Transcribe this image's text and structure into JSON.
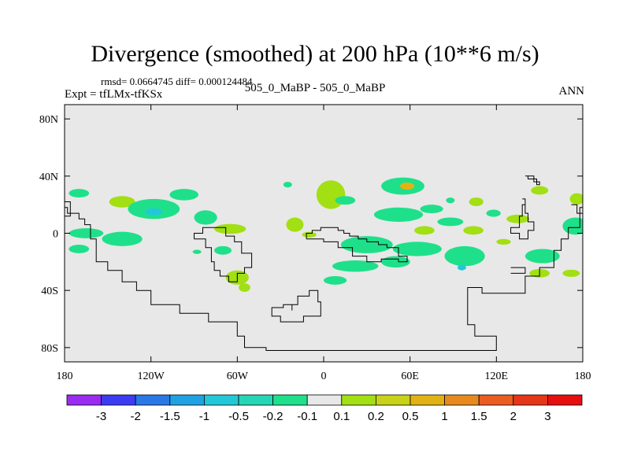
{
  "chart_data": {
    "type": "heatmap",
    "title": "Divergence (smoothed) at 200 hPa (10**6 m/s)",
    "stats": "rmsd= 0.0664745 diff= 0.000124484",
    "left_label": "Expt = tfLMx-tfKSx",
    "center_label": "505_0_MaBP - 505_0_MaBP",
    "right_label": "ANN",
    "x_ticks": [
      "180",
      "120W",
      "60W",
      "0",
      "60E",
      "120E",
      "180"
    ],
    "x_tick_values": [
      -180,
      -120,
      -60,
      0,
      60,
      120,
      180
    ],
    "y_ticks": [
      "80N",
      "40N",
      "0",
      "40S",
      "80S"
    ],
    "y_tick_values": [
      80,
      40,
      0,
      -40,
      -80
    ],
    "xlim": [
      -180,
      180
    ],
    "ylim": [
      -90,
      90
    ],
    "colorbar_labels": [
      "-3",
      "-2",
      "-1.5",
      "-1",
      "-0.5",
      "-0.2",
      "-0.1",
      "0.1",
      "0.2",
      "0.5",
      "1",
      "1.5",
      "2",
      "3"
    ],
    "colorbar_colors": [
      "#9a2bf0",
      "#3c3cf2",
      "#2a78e6",
      "#1fa2e2",
      "#23c8d8",
      "#25d6b6",
      "#1fe08a",
      "#e8e8e8",
      "#a2df13",
      "#c8d218",
      "#e2b214",
      "#e8891e",
      "#ea5c20",
      "#e63618",
      "#e60e0e"
    ],
    "background_color": "#e8e8e8",
    "blobs": [
      {
        "lon": -170,
        "lat": 28,
        "rx": 7,
        "ry": 3,
        "c": "#1fe08a"
      },
      {
        "lon": -165,
        "lat": 0,
        "rx": 12,
        "ry": 3.5,
        "c": "#1fe08a"
      },
      {
        "lon": -170,
        "lat": -11,
        "rx": 7,
        "ry": 3,
        "c": "#1fe08a"
      },
      {
        "lon": -140,
        "lat": 22,
        "rx": 9,
        "ry": 4,
        "c": "#a2df13"
      },
      {
        "lon": -118,
        "lat": 17,
        "rx": 18,
        "ry": 7,
        "c": "#1fe08a"
      },
      {
        "lon": -118,
        "lat": 15,
        "rx": 6,
        "ry": 2.5,
        "c": "#23c8d8"
      },
      {
        "lon": -140,
        "lat": -4,
        "rx": 14,
        "ry": 5,
        "c": "#1fe08a"
      },
      {
        "lon": -97,
        "lat": 27,
        "rx": 10,
        "ry": 4,
        "c": "#1fe08a"
      },
      {
        "lon": -82,
        "lat": 11,
        "rx": 8,
        "ry": 5,
        "c": "#1fe08a"
      },
      {
        "lon": -65,
        "lat": 3,
        "rx": 11,
        "ry": 3.5,
        "c": "#a2df13"
      },
      {
        "lon": -60,
        "lat": -31,
        "rx": 8,
        "ry": 5,
        "c": "#a2df13"
      },
      {
        "lon": -55,
        "lat": -38,
        "rx": 4,
        "ry": 3,
        "c": "#a2df13"
      },
      {
        "lon": -88,
        "lat": -13,
        "rx": 3,
        "ry": 1.5,
        "c": "#1fe08a"
      },
      {
        "lon": -20,
        "lat": 6,
        "rx": 6,
        "ry": 5,
        "c": "#a2df13"
      },
      {
        "lon": -10,
        "lat": -1,
        "rx": 5,
        "ry": 2,
        "c": "#a2df13"
      },
      {
        "lon": 5,
        "lat": 27,
        "rx": 10,
        "ry": 10,
        "c": "#a2df13"
      },
      {
        "lon": 15,
        "lat": 23,
        "rx": 7,
        "ry": 3,
        "c": "#1fe08a"
      },
      {
        "lon": -25,
        "lat": 34,
        "rx": 3,
        "ry": 2,
        "c": "#1fe08a"
      },
      {
        "lon": 30,
        "lat": -8,
        "rx": 18,
        "ry": 6,
        "c": "#1fe08a"
      },
      {
        "lon": 22,
        "lat": -23,
        "rx": 16,
        "ry": 4,
        "c": "#1fe08a"
      },
      {
        "lon": 8,
        "lat": -33,
        "rx": 8,
        "ry": 3,
        "c": "#1fe08a"
      },
      {
        "lon": 55,
        "lat": 33,
        "rx": 15,
        "ry": 6,
        "c": "#1fe08a"
      },
      {
        "lon": 58,
        "lat": 33,
        "rx": 5,
        "ry": 2.5,
        "c": "#e2b214"
      },
      {
        "lon": 52,
        "lat": 13,
        "rx": 17,
        "ry": 5,
        "c": "#1fe08a"
      },
      {
        "lon": 75,
        "lat": 17,
        "rx": 8,
        "ry": 3,
        "c": "#1fe08a"
      },
      {
        "lon": 70,
        "lat": 2,
        "rx": 7,
        "ry": 3,
        "c": "#a2df13"
      },
      {
        "lon": 65,
        "lat": -11,
        "rx": 17,
        "ry": 5,
        "c": "#1fe08a"
      },
      {
        "lon": 50,
        "lat": -20,
        "rx": 10,
        "ry": 4,
        "c": "#1fe08a"
      },
      {
        "lon": 98,
        "lat": -16,
        "rx": 14,
        "ry": 7,
        "c": "#1fe08a"
      },
      {
        "lon": 96,
        "lat": -24,
        "rx": 3,
        "ry": 2,
        "c": "#23c8d8"
      },
      {
        "lon": 88,
        "lat": 8,
        "rx": 9,
        "ry": 3,
        "c": "#1fe08a"
      },
      {
        "lon": 104,
        "lat": 2,
        "rx": 7,
        "ry": 3,
        "c": "#a2df13"
      },
      {
        "lon": 106,
        "lat": 22,
        "rx": 5,
        "ry": 3,
        "c": "#a2df13"
      },
      {
        "lon": 88,
        "lat": 23,
        "rx": 3,
        "ry": 2,
        "c": "#1fe08a"
      },
      {
        "lon": 118,
        "lat": 14,
        "rx": 5,
        "ry": 2.5,
        "c": "#1fe08a"
      },
      {
        "lon": 135,
        "lat": 10,
        "rx": 8,
        "ry": 3,
        "c": "#a2df13"
      },
      {
        "lon": 125,
        "lat": -6,
        "rx": 5,
        "ry": 2,
        "c": "#a2df13"
      },
      {
        "lon": 152,
        "lat": -16,
        "rx": 12,
        "ry": 5,
        "c": "#1fe08a"
      },
      {
        "lon": 150,
        "lat": -28,
        "rx": 7,
        "ry": 3,
        "c": "#a2df13"
      },
      {
        "lon": 175,
        "lat": 5,
        "rx": 9,
        "ry": 6,
        "c": "#1fe08a"
      },
      {
        "lon": 176,
        "lat": 24,
        "rx": 5,
        "ry": 4,
        "c": "#a2df13"
      },
      {
        "lon": 150,
        "lat": 30,
        "rx": 6,
        "ry": 3,
        "c": "#a2df13"
      },
      {
        "lon": 172,
        "lat": -28,
        "rx": 6,
        "ry": 2.5,
        "c": "#a2df13"
      },
      {
        "lon": -70,
        "lat": -12,
        "rx": 6,
        "ry": 3,
        "c": "#1fe08a"
      }
    ],
    "coast": [
      [
        [
          -180,
          18
        ],
        [
          -178,
          18
        ],
        [
          -178,
          14
        ],
        [
          -170,
          14
        ],
        [
          -170,
          10
        ],
        [
          -166,
          10
        ],
        [
          -166,
          6
        ],
        [
          -162,
          6
        ],
        [
          -162,
          -4
        ],
        [
          -158,
          -4
        ],
        [
          -158,
          -20
        ],
        [
          -150,
          -20
        ],
        [
          -150,
          -26
        ],
        [
          -140,
          -26
        ],
        [
          -140,
          -34
        ],
        [
          -130,
          -34
        ],
        [
          -130,
          -40
        ],
        [
          -120,
          -40
        ],
        [
          -120,
          -50
        ],
        [
          -100,
          -50
        ],
        [
          -100,
          -56
        ],
        [
          -80,
          -56
        ],
        [
          -80,
          -62
        ],
        [
          -60,
          -62
        ],
        [
          -60,
          -72
        ],
        [
          -55,
          -72
        ],
        [
          -55,
          -80
        ],
        [
          -40,
          -80
        ],
        [
          -40,
          -82
        ],
        [
          120,
          -82
        ],
        [
          120,
          -72
        ],
        [
          105,
          -72
        ],
        [
          105,
          -64
        ],
        [
          100,
          -64
        ],
        [
          100,
          -38
        ],
        [
          110,
          -38
        ],
        [
          110,
          -42
        ],
        [
          140,
          -42
        ],
        [
          140,
          -30
        ],
        [
          150,
          -30
        ],
        [
          150,
          -24
        ],
        [
          160,
          -24
        ],
        [
          160,
          -12
        ],
        [
          165,
          -12
        ],
        [
          165,
          -4
        ],
        [
          170,
          -4
        ],
        [
          170,
          4
        ],
        [
          178,
          4
        ],
        [
          178,
          18
        ],
        [
          180,
          18
        ]
      ],
      [
        [
          -180,
          22
        ],
        [
          -176,
          22
        ],
        [
          -176,
          12
        ],
        [
          -180,
          12
        ]
      ],
      [
        [
          -90,
          -4
        ],
        [
          -82,
          -4
        ],
        [
          -82,
          -10
        ],
        [
          -78,
          -10
        ],
        [
          -78,
          -20
        ],
        [
          -76,
          -20
        ],
        [
          -76,
          -26
        ],
        [
          -72,
          -26
        ],
        [
          -72,
          -30
        ],
        [
          -66,
          -30
        ],
        [
          -66,
          -34
        ],
        [
          -60,
          -34
        ],
        [
          -60,
          -28
        ],
        [
          -55,
          -28
        ],
        [
          -55,
          -24
        ],
        [
          -50,
          -24
        ],
        [
          -50,
          -14
        ],
        [
          -57,
          -14
        ],
        [
          -57,
          -6
        ],
        [
          -62,
          -6
        ],
        [
          -62,
          -2
        ],
        [
          -68,
          -2
        ],
        [
          -68,
          4
        ],
        [
          -84,
          4
        ],
        [
          -84,
          0
        ],
        [
          -90,
          0
        ],
        [
          -90,
          -4
        ]
      ],
      [
        [
          -12,
          -4
        ],
        [
          -12,
          0
        ],
        [
          -8,
          0
        ],
        [
          -8,
          2
        ],
        [
          -2,
          2
        ],
        [
          -2,
          4
        ],
        [
          10,
          4
        ],
        [
          10,
          2
        ],
        [
          14,
          2
        ],
        [
          14,
          0
        ],
        [
          18,
          0
        ],
        [
          18,
          -2
        ],
        [
          24,
          -2
        ],
        [
          24,
          -4
        ],
        [
          30,
          -4
        ],
        [
          30,
          -6
        ],
        [
          38,
          -6
        ],
        [
          38,
          -8
        ],
        [
          44,
          -8
        ],
        [
          44,
          -10
        ],
        [
          52,
          -10
        ],
        [
          52,
          -16
        ],
        [
          58,
          -16
        ],
        [
          58,
          -20
        ],
        [
          52,
          -20
        ],
        [
          52,
          -18
        ],
        [
          40,
          -18
        ],
        [
          40,
          -20
        ],
        [
          30,
          -20
        ],
        [
          30,
          -16
        ],
        [
          20,
          -16
        ],
        [
          20,
          -10
        ],
        [
          10,
          -10
        ],
        [
          10,
          -6
        ],
        [
          0,
          -6
        ],
        [
          0,
          -4
        ],
        [
          -12,
          -4
        ]
      ],
      [
        [
          -22,
          -54
        ],
        [
          -22,
          -50
        ],
        [
          -18,
          -50
        ],
        [
          -18,
          -44
        ],
        [
          -10,
          -44
        ],
        [
          -10,
          -40
        ],
        [
          -4,
          -40
        ],
        [
          -4,
          -48
        ],
        [
          -2,
          -48
        ],
        [
          -2,
          -58
        ],
        [
          -14,
          -58
        ],
        [
          -14,
          -62
        ],
        [
          -30,
          -62
        ],
        [
          -30,
          -58
        ],
        [
          -36,
          -58
        ],
        [
          -36,
          -52
        ],
        [
          -28,
          -52
        ],
        [
          -28,
          -50
        ],
        [
          -22,
          -50
        ]
      ],
      [
        [
          140,
          40
        ],
        [
          146,
          40
        ],
        [
          146,
          36
        ],
        [
          150,
          36
        ],
        [
          150,
          34
        ],
        [
          148,
          34
        ],
        [
          148,
          38
        ],
        [
          142,
          38
        ],
        [
          142,
          40
        ]
      ],
      [
        [
          138,
          24
        ],
        [
          140,
          24
        ],
        [
          140,
          20
        ],
        [
          138,
          20
        ],
        [
          138,
          12
        ],
        [
          136,
          12
        ],
        [
          136,
          4
        ],
        [
          130,
          4
        ],
        [
          130,
          0
        ],
        [
          136,
          0
        ],
        [
          136,
          -4
        ],
        [
          142,
          -4
        ],
        [
          142,
          2
        ],
        [
          146,
          2
        ],
        [
          146,
          8
        ],
        [
          142,
          8
        ],
        [
          142,
          14
        ],
        [
          140,
          14
        ],
        [
          140,
          24
        ]
      ],
      [
        [
          172,
          20
        ],
        [
          176,
          20
        ],
        [
          176,
          14
        ],
        [
          180,
          14
        ]
      ],
      [
        [
          130,
          -24
        ],
        [
          140,
          -24
        ],
        [
          140,
          -28
        ],
        [
          130,
          -28
        ]
      ]
    ]
  }
}
